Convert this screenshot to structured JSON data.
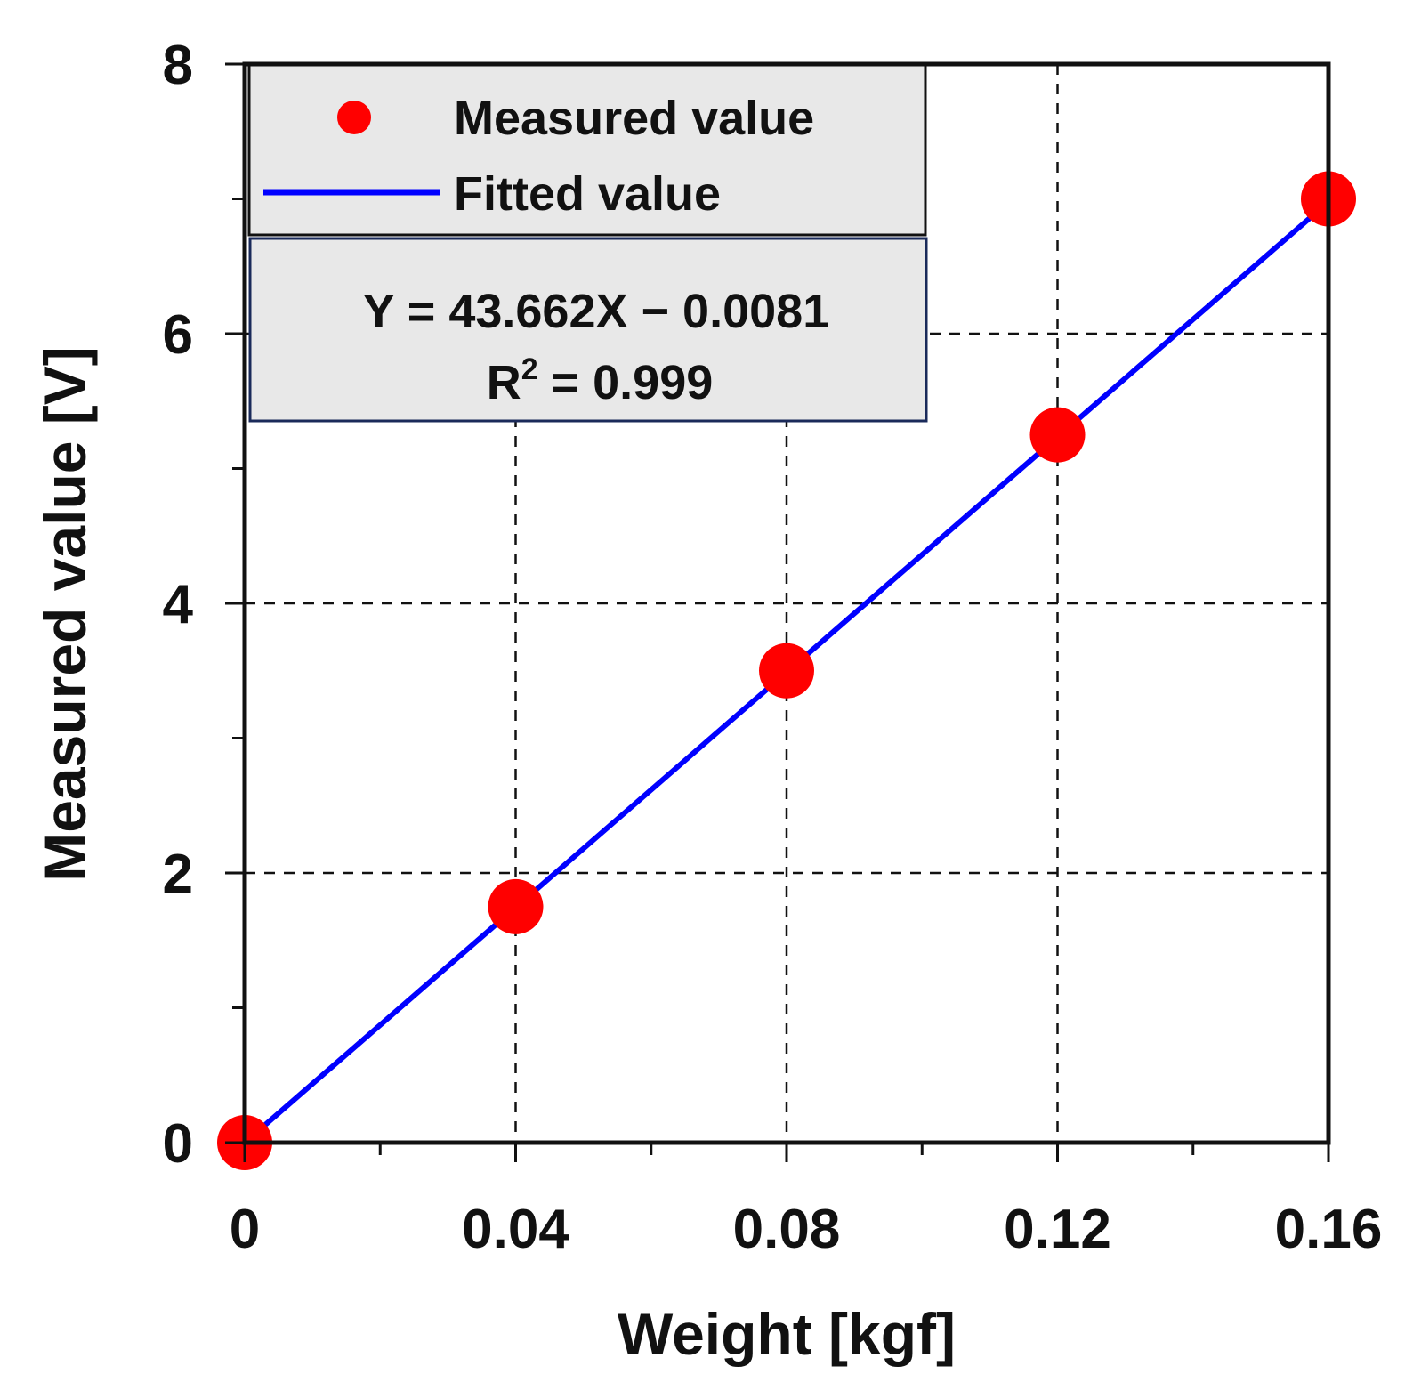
{
  "chart_data": {
    "type": "scatter",
    "title": "",
    "xlabel": "Weight [kgf]",
    "ylabel": "Measured value [V]",
    "xlim": [
      0,
      0.16
    ],
    "ylim": [
      0,
      8
    ],
    "x_ticks": [
      0,
      0.04,
      0.08,
      0.12,
      0.16
    ],
    "x_tick_labels": [
      "0",
      "0.04",
      "0.08",
      "0.12",
      "0.16"
    ],
    "x_minor_ticks": [
      0.02,
      0.06,
      0.1,
      0.14
    ],
    "y_ticks": [
      0,
      2,
      4,
      6,
      8
    ],
    "y_tick_labels": [
      "0",
      "2",
      "4",
      "6",
      "8"
    ],
    "y_minor_ticks": [
      1,
      3,
      5,
      7
    ],
    "grid": true,
    "series": [
      {
        "name": "Measured value",
        "kind": "scatter",
        "color": "#ff0000",
        "x": [
          0,
          0.04,
          0.08,
          0.12,
          0.16
        ],
        "y": [
          0,
          1.75,
          3.5,
          5.25,
          7.0
        ]
      },
      {
        "name": "Fitted value",
        "kind": "line",
        "color": "#0000ff",
        "slope": 43.662,
        "intercept": -0.0081,
        "x": [
          0,
          0.16
        ]
      }
    ],
    "legend": {
      "position": "top-left",
      "entries": [
        "Measured value",
        "Fitted value"
      ]
    },
    "annotation": {
      "equation": "Y = 43.662X − 0.0081",
      "r2_prefix": "R",
      "r2_sup": "2",
      "r2_suffix": " = 0.999"
    }
  }
}
